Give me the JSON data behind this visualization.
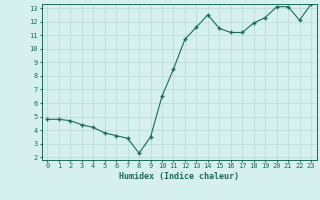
{
  "x": [
    0,
    1,
    2,
    3,
    4,
    5,
    6,
    7,
    8,
    9,
    10,
    11,
    12,
    13,
    14,
    15,
    16,
    17,
    18,
    19,
    20,
    21,
    22,
    23
  ],
  "y": [
    4.8,
    4.8,
    4.7,
    4.4,
    4.2,
    3.8,
    3.6,
    3.4,
    2.3,
    3.5,
    6.5,
    8.5,
    10.7,
    11.6,
    12.5,
    11.5,
    11.2,
    11.2,
    11.9,
    12.3,
    13.1,
    13.1,
    12.1,
    13.3
  ],
  "xlabel": "Humidex (Indice chaleur)",
  "ylim_min": 1.8,
  "ylim_max": 13.3,
  "xlim_min": -0.5,
  "xlim_max": 23.5,
  "yticks": [
    2,
    3,
    4,
    5,
    6,
    7,
    8,
    9,
    10,
    11,
    12,
    13
  ],
  "xticks": [
    0,
    1,
    2,
    3,
    4,
    5,
    6,
    7,
    8,
    9,
    10,
    11,
    12,
    13,
    14,
    15,
    16,
    17,
    18,
    19,
    20,
    21,
    22,
    23
  ],
  "line_color": "#1a6b5a",
  "marker": "+",
  "bg_color": "#d6f0ef",
  "grid_color": "#b8d8d4",
  "tick_label_color": "#1a6b5a",
  "xlabel_color": "#1a6b5a",
  "font_family": "monospace",
  "tick_fontsize": 5.0,
  "xlabel_fontsize": 6.0
}
